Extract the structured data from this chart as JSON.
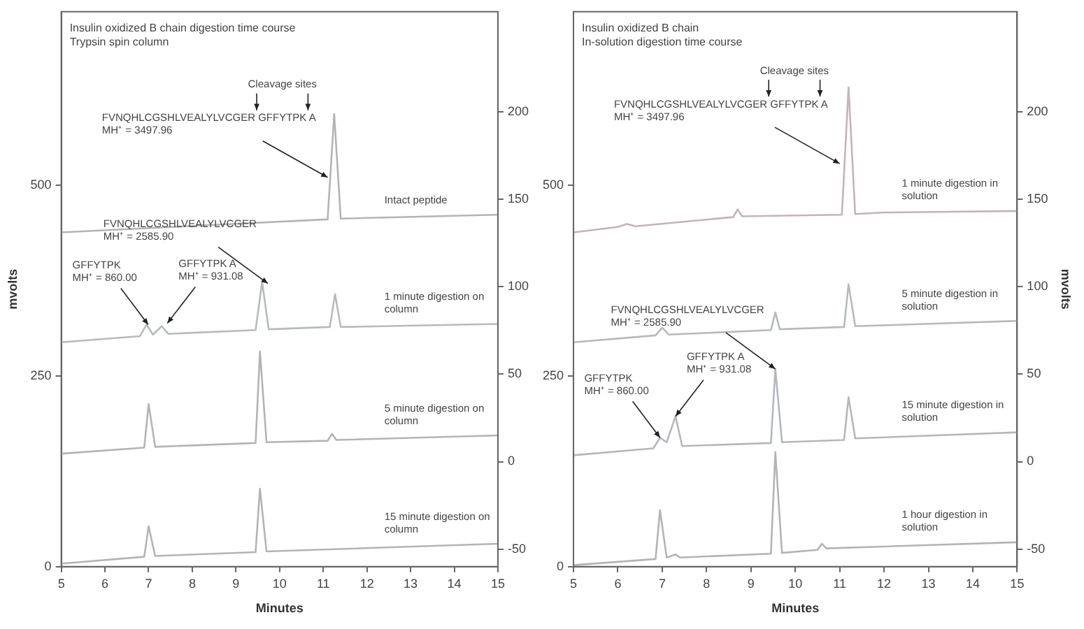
{
  "chart_data": [
    {
      "type": "line",
      "title": "Insulin oxidized B chain digestion time course",
      "subtitle": "Trypsin spin column",
      "xlabel": "Minutes",
      "ylabel": "mvolts",
      "xlim": [
        5,
        15
      ],
      "xticks": [
        5,
        6,
        7,
        8,
        9,
        10,
        11,
        12,
        13,
        14,
        15
      ],
      "ylim": [
        0,
        727
      ],
      "yticks": [
        0,
        250,
        500
      ],
      "y2lim": [
        -60,
        257
      ],
      "y2ticks": [
        -50,
        0,
        50,
        100,
        150,
        200
      ],
      "grid": false,
      "legend": false,
      "series": [
        {
          "name": "Intact peptide",
          "color": "#b4b4b4",
          "x": [
            5,
            11.1,
            11.25,
            11.4,
            15
          ],
          "values": [
            438,
            455,
            593,
            456,
            461
          ]
        },
        {
          "name": "1 minute digestion on column",
          "color": "#b4bcbc",
          "x": [
            5,
            6.8,
            6.95,
            7.1,
            7.3,
            7.45,
            9.45,
            9.6,
            9.75,
            11.15,
            11.27,
            11.4,
            15
          ],
          "values": [
            294,
            302,
            317,
            304,
            315,
            305,
            310,
            373,
            311,
            314,
            357,
            314,
            318
          ]
        },
        {
          "name": "5 minute digestion on column",
          "color": "#b4b4b4",
          "x": [
            5,
            6.9,
            7.0,
            7.15,
            9.45,
            9.55,
            9.7,
            11.1,
            11.2,
            11.3,
            15
          ],
          "values": [
            148,
            156,
            213,
            157,
            162,
            282,
            163,
            165,
            174,
            166,
            172
          ]
        },
        {
          "name": "15 minute digestion on column",
          "color": "#b4b4b4",
          "x": [
            5,
            6.9,
            7.0,
            7.15,
            9.45,
            9.55,
            9.7,
            15
          ],
          "values": [
            4,
            13,
            53,
            14,
            19,
            102,
            20,
            30
          ]
        }
      ],
      "annotations": [
        {
          "text": "FVNQHLCGSHLVEALYLVCGER GFFYTPK A\nMH⁺ = 3497.96",
          "x": 11.1,
          "y": 510
        },
        "Cleavage sites",
        {
          "text": "FVNQHLCGSHLVEALYLVCGER\nMH⁺ = 2585.90",
          "x": 9.73,
          "y": 371
        },
        {
          "text": "GFFYTPK\nMH⁺ = 860.00",
          "x": 6.99,
          "y": 317
        },
        {
          "text": "GFFYTPK A\nMH⁺ = 931.08",
          "x": 7.43,
          "y": 319
        }
      ]
    },
    {
      "type": "line",
      "title": "Insulin oxidized B chain",
      "subtitle": "In-solution digestion time course",
      "xlabel": "Minutes",
      "y2label": "mvolts",
      "xlim": [
        5,
        15
      ],
      "xticks": [
        5,
        6,
        7,
        8,
        9,
        10,
        11,
        12,
        13,
        14,
        15
      ],
      "ylim": [
        0,
        727
      ],
      "yticks": [
        0,
        250,
        500
      ],
      "y2lim": [
        -60,
        257
      ],
      "y2ticks": [
        -50,
        0,
        50,
        100,
        150,
        200
      ],
      "grid": false,
      "legend": false,
      "series": [
        {
          "name": "1 minute digestion in solution",
          "color": "#c4b4b8",
          "x": [
            5,
            6.0,
            6.2,
            6.4,
            8.6,
            8.7,
            8.8,
            11.05,
            11.2,
            11.35,
            12,
            15
          ],
          "values": [
            438,
            445,
            449,
            446,
            458,
            468,
            459,
            461,
            628,
            462,
            464,
            466
          ]
        },
        {
          "name": "5 minute digestion in solution",
          "color": "#b4bcba",
          "x": [
            5,
            6.85,
            7.0,
            7.15,
            9.45,
            9.55,
            9.65,
            11.1,
            11.2,
            11.35,
            15
          ],
          "values": [
            294,
            303,
            313,
            304,
            310,
            333,
            311,
            314,
            370,
            315,
            322
          ]
        },
        {
          "name": "15 minute digestion in solution",
          "color": "#b4b8bc",
          "x": [
            5,
            6.8,
            6.95,
            7.1,
            7.3,
            7.45,
            9.45,
            9.55,
            9.7,
            11.1,
            11.2,
            11.35,
            15
          ],
          "values": [
            146,
            155,
            169,
            163,
            197,
            158,
            162,
            259,
            163,
            166,
            222,
            168,
            176
          ]
        },
        {
          "name": "1 hour digestion in solution",
          "color": "#b4b4b4",
          "x": [
            5,
            6.85,
            6.95,
            7.1,
            7.3,
            7.4,
            9.45,
            9.55,
            9.7,
            10.5,
            10.6,
            10.7,
            15
          ],
          "values": [
            2,
            10,
            74,
            12,
            16,
            12,
            17,
            150,
            18,
            22,
            30,
            24,
            32
          ]
        }
      ],
      "annotations": [
        {
          "text": "FVNQHLCGSHLVEALYLVCGER GFFYTPK A\nMH⁺ = 3497.96",
          "x": 11.0,
          "y": 528
        },
        "Cleavage sites",
        {
          "text": "FVNQHLCGSHLVEALYLVCGER\nMH⁺ = 2585.90",
          "x": 9.55,
          "y": 259
        },
        {
          "text": "GFFYTPK\nMH⁺ = 860.00",
          "x": 6.95,
          "y": 169
        },
        {
          "text": "GFFYTPK A\nMH⁺ = 931.08",
          "x": 7.3,
          "y": 197
        }
      ]
    }
  ]
}
